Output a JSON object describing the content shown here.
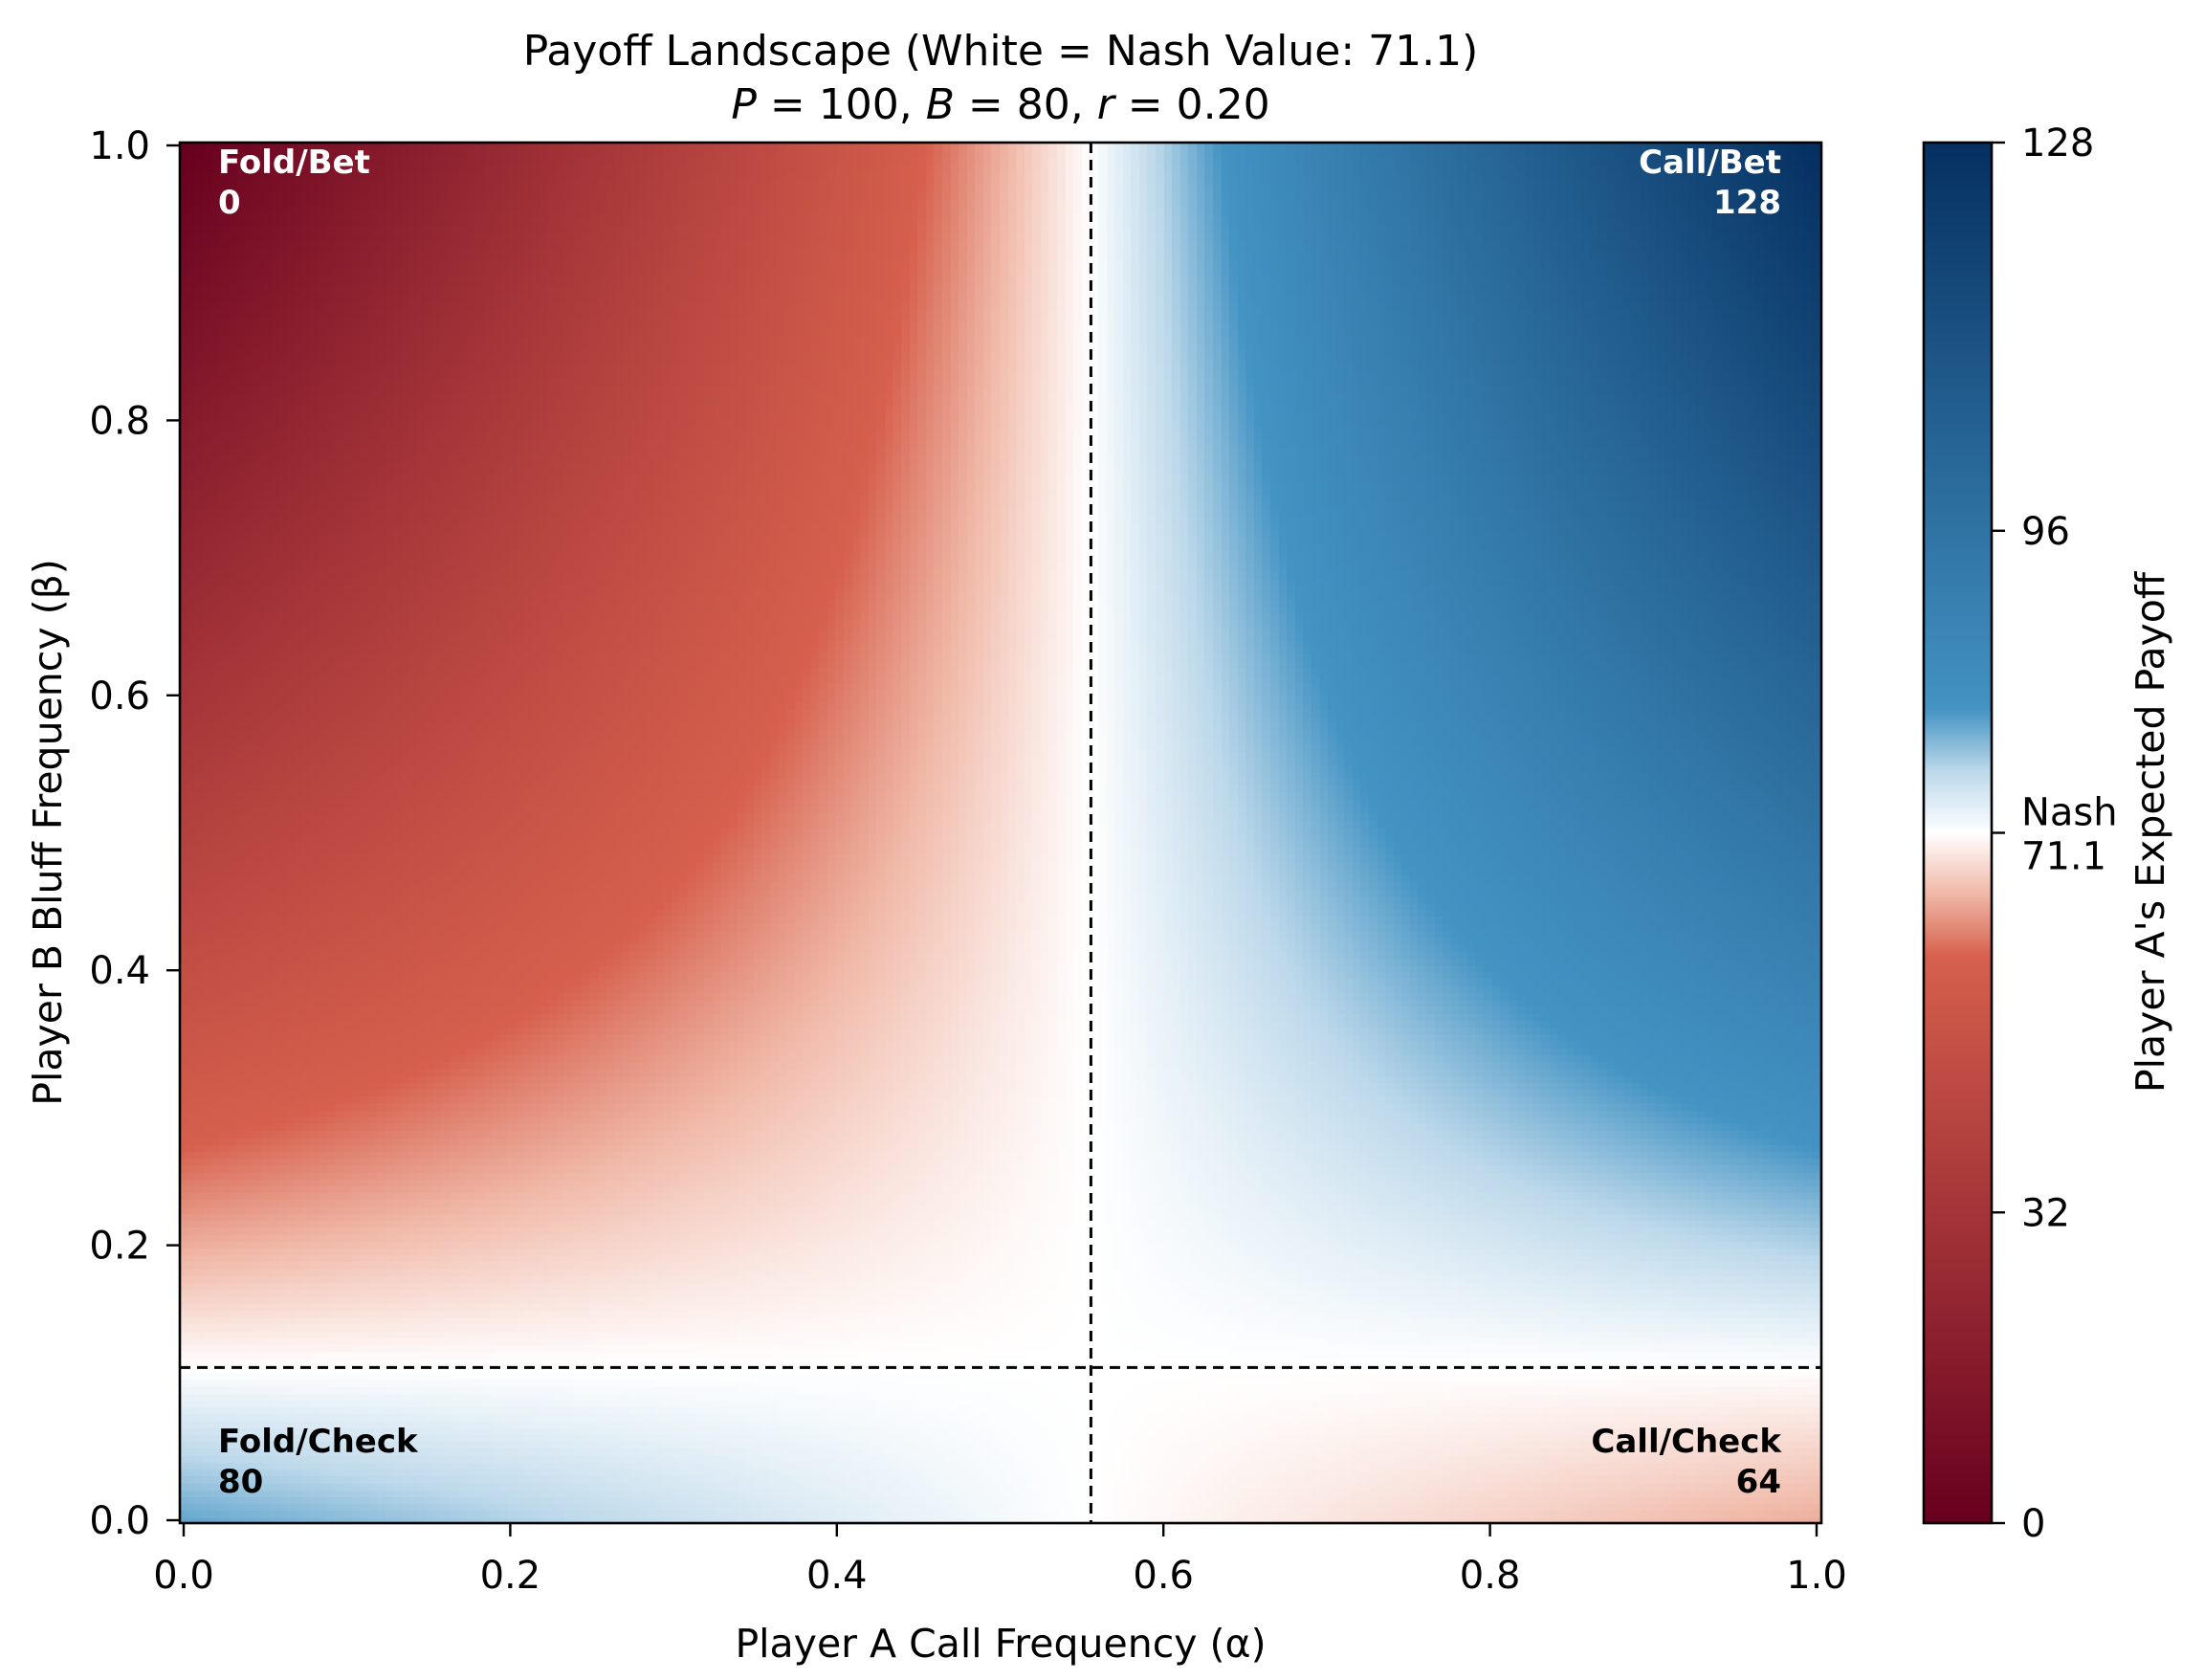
{
  "chart_data": {
    "type": "heatmap",
    "title": "Payoff Landscape (White = Nash Value: 71.1)",
    "subtitle": {
      "parts": [
        {
          "text": "P",
          "italic": true
        },
        {
          "text": " = 100, ",
          "italic": false
        },
        {
          "text": "B",
          "italic": true
        },
        {
          "text": " = 80, ",
          "italic": false
        },
        {
          "text": "r",
          "italic": true
        },
        {
          "text": " = 0.20",
          "italic": false
        }
      ]
    },
    "xlabel": "Player A Call Frequency (α)",
    "ylabel": "Player B Bluff Frequency (β)",
    "xlim": [
      0,
      1
    ],
    "ylim": [
      0,
      1
    ],
    "xticks": [
      {
        "value": 0.0,
        "label": "0.0"
      },
      {
        "value": 0.2,
        "label": "0.2"
      },
      {
        "value": 0.4,
        "label": "0.4"
      },
      {
        "value": 0.6,
        "label": "0.6"
      },
      {
        "value": 0.8,
        "label": "0.8"
      },
      {
        "value": 1.0,
        "label": "1.0"
      }
    ],
    "yticks": [
      {
        "value": 0.0,
        "label": "0.0"
      },
      {
        "value": 0.2,
        "label": "0.2"
      },
      {
        "value": 0.4,
        "label": "0.4"
      },
      {
        "value": 0.6,
        "label": "0.6"
      },
      {
        "value": 0.8,
        "label": "0.8"
      },
      {
        "value": 1.0,
        "label": "1.0"
      }
    ],
    "grid": false,
    "grid_resolution": 200,
    "surface": {
      "description": "Bilinear expected payoff V(α,β) from the four pure-strategy corner payoffs",
      "corners": {
        "fold_check": 80,
        "call_check": 64,
        "fold_bet": 0,
        "call_bet": 128
      }
    },
    "nash": {
      "alpha": 0.5556,
      "beta": 0.1111,
      "value": 71.1
    },
    "reference_lines": [
      {
        "orientation": "vertical",
        "value": 0.5556,
        "style": "dashed",
        "color": "#000000"
      },
      {
        "orientation": "horizontal",
        "value": 0.1111,
        "style": "dashed",
        "color": "#000000"
      }
    ],
    "corner_annotations": [
      {
        "id": "fold-bet",
        "label": "Fold/Bet",
        "value": "0",
        "position": "top-left",
        "color": "#ffffff"
      },
      {
        "id": "call-bet",
        "label": "Call/Bet",
        "value": "128",
        "position": "top-right",
        "color": "#ffffff"
      },
      {
        "id": "fold-check",
        "label": "Fold/Check",
        "value": "80",
        "position": "bottom-left",
        "color": "#000000"
      },
      {
        "id": "call-check",
        "label": "Call/Check",
        "value": "64",
        "position": "bottom-right",
        "color": "#000000"
      }
    ],
    "colorbar": {
      "label": "Player A's Expected Payoff",
      "norm": "two-slope",
      "vmin": 0,
      "vcenter": 71.1,
      "vmax": 128,
      "ticks": [
        {
          "value": 0,
          "label": "0"
        },
        {
          "value": 32,
          "label": "32"
        },
        {
          "value": 71.1,
          "label": "Nash",
          "label2": "71.1"
        },
        {
          "value": 96,
          "label": "96"
        },
        {
          "value": 128,
          "label": "128"
        }
      ],
      "placement": "right",
      "colormap_stops": [
        {
          "t": 0.0,
          "color": "#67001f"
        },
        {
          "t": 0.41,
          "color": "#d6604d"
        },
        {
          "t": 0.455,
          "color": "#f0b7a6"
        },
        {
          "t": 0.5,
          "color": "#ffffff"
        },
        {
          "t": 0.545,
          "color": "#bcd8ea"
        },
        {
          "t": 0.59,
          "color": "#4393c3"
        },
        {
          "t": 1.0,
          "color": "#053061"
        }
      ]
    }
  }
}
